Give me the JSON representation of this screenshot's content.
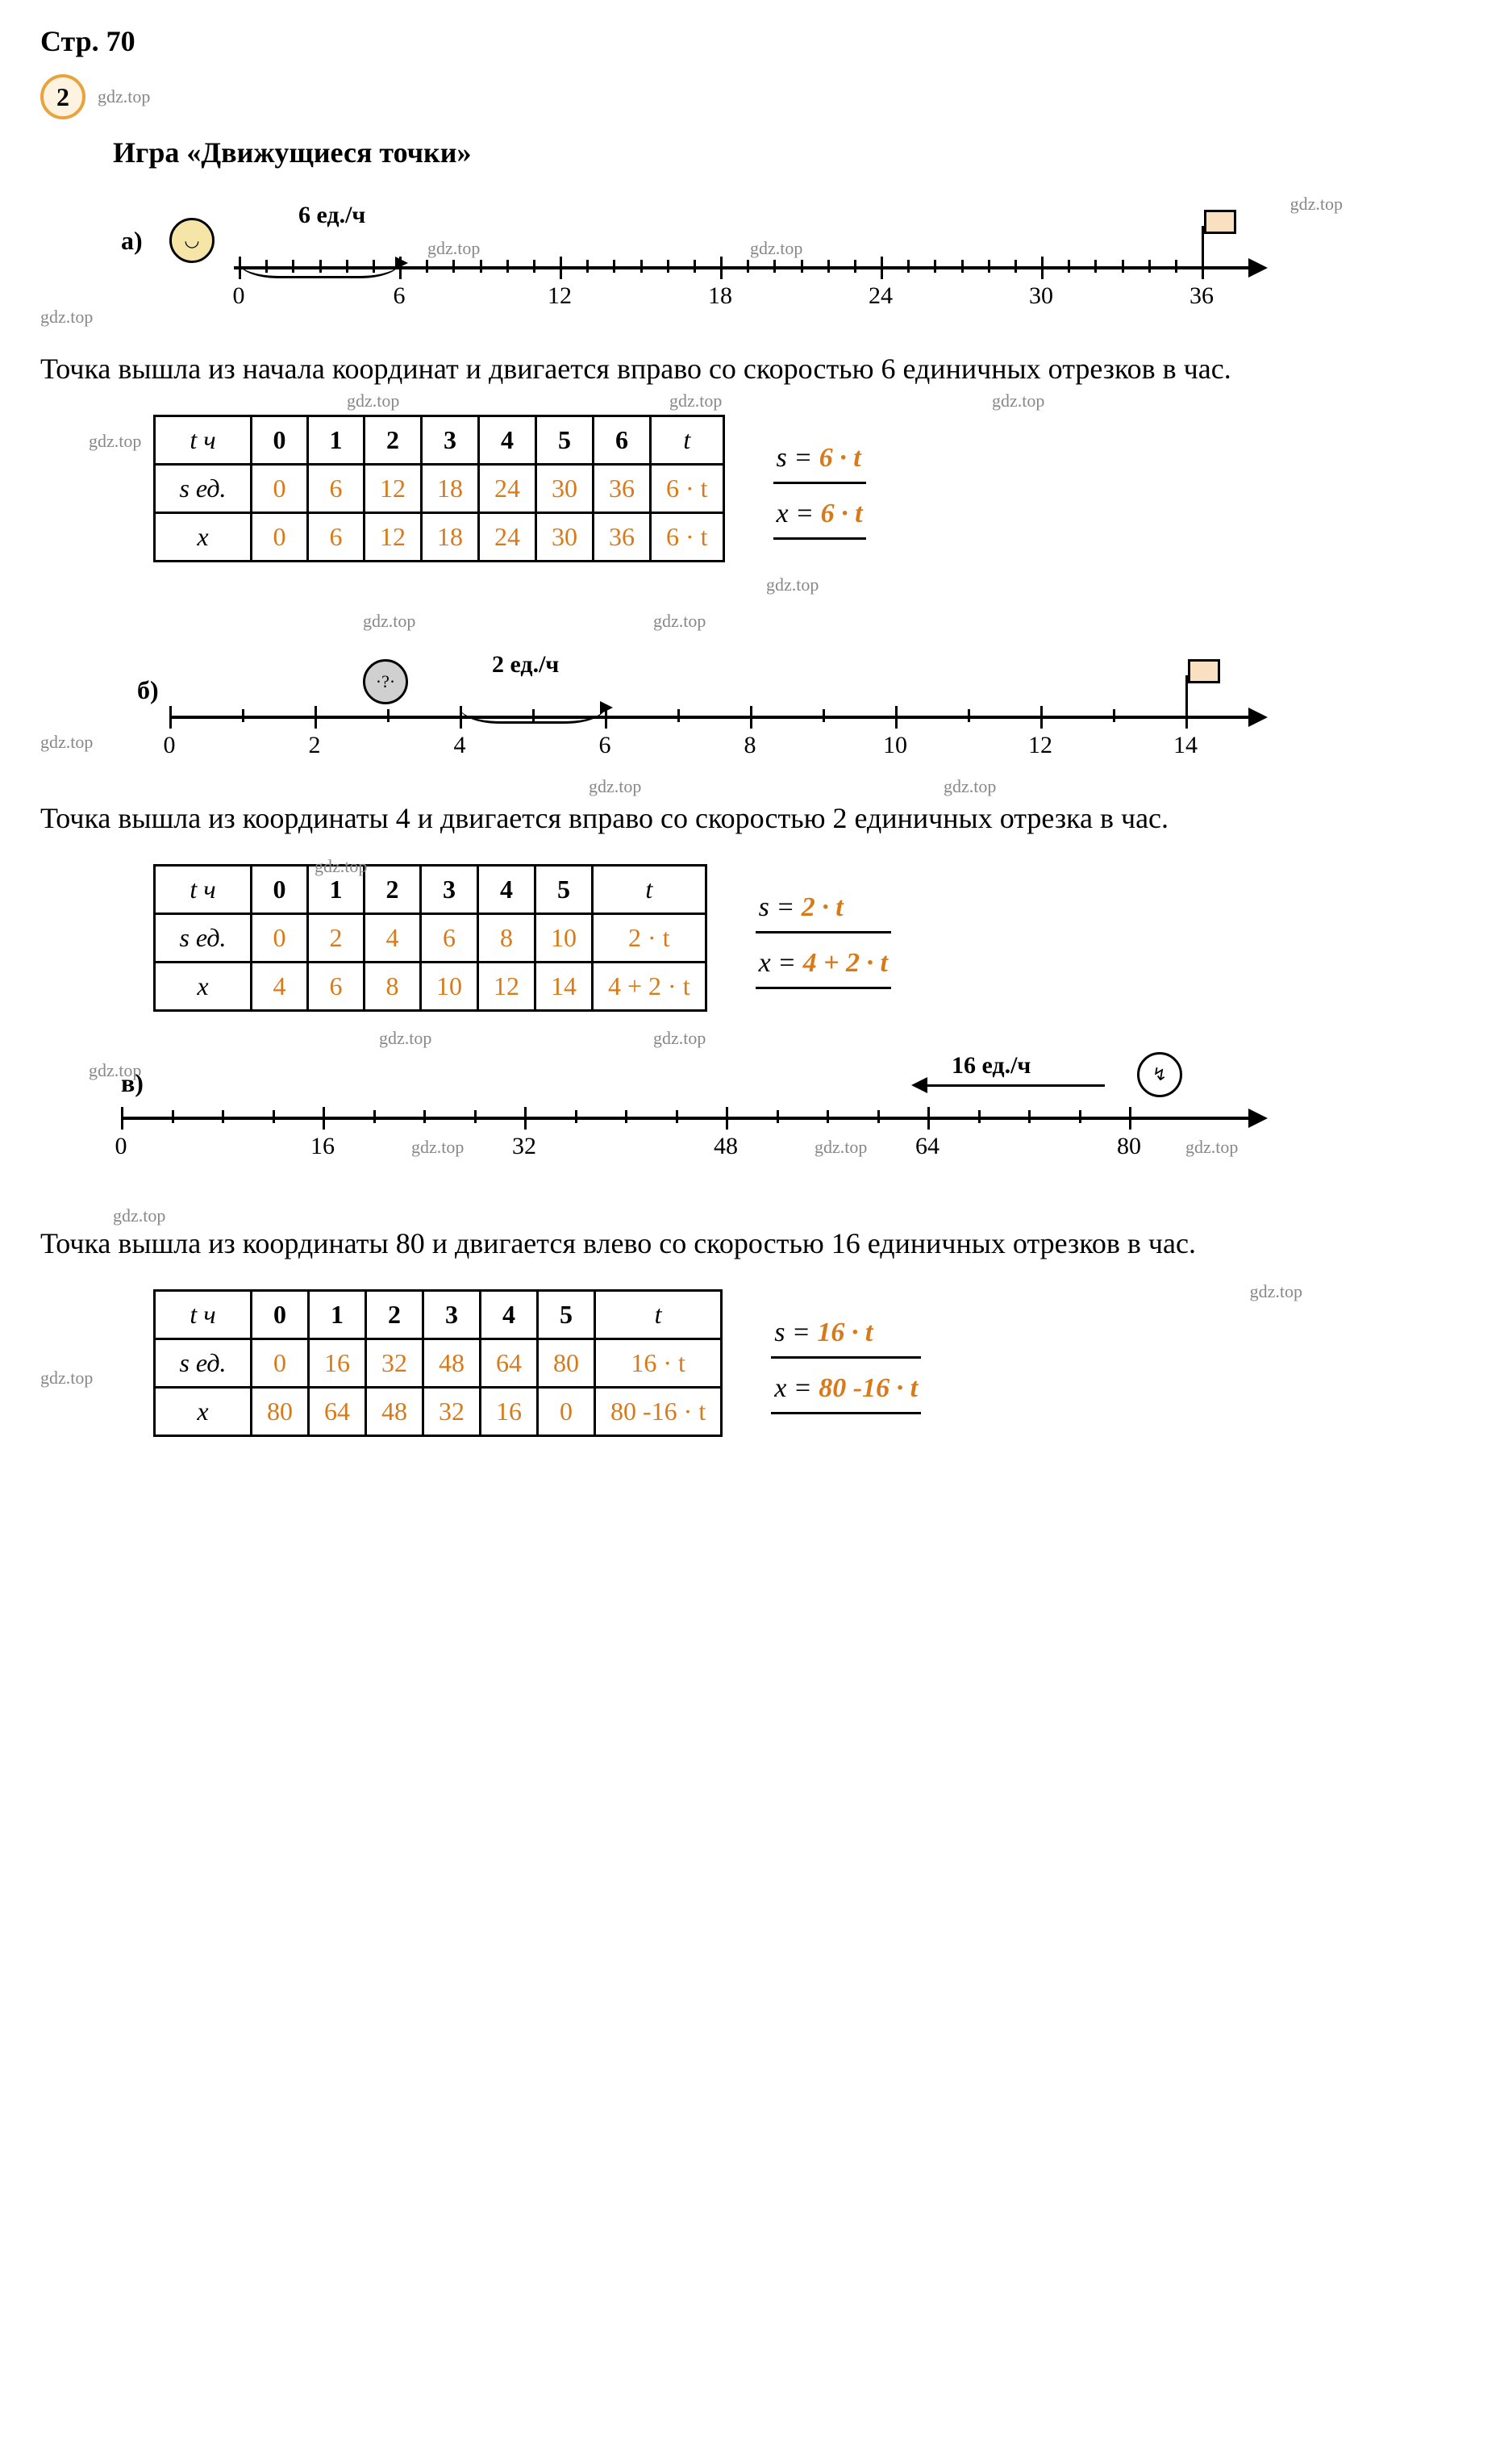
{
  "page_label": "Стр. 70",
  "problem_number": "2",
  "watermark": "gdz.top",
  "title": "Игра «Движущиеся точки»",
  "colors": {
    "accent": "#d97a1a",
    "badge_border": "#e8a33d",
    "badge_fill": "#fef3e0",
    "text": "#000000",
    "bg": "#ffffff",
    "watermark": "#888888"
  },
  "sections": {
    "a": {
      "label": "а)",
      "speed_label": "6 ед./ч",
      "axis": {
        "ticks": [
          "0",
          "6",
          "12",
          "18",
          "24",
          "30",
          "36"
        ],
        "minor_per_major": 6
      },
      "description": "Точка вышла из начала координат и двигается вправо со скоростью 6 единичных отрезков в час.",
      "table": {
        "row_headers": [
          "t ч",
          "s ед.",
          "x"
        ],
        "columns": [
          "0",
          "1",
          "2",
          "3",
          "4",
          "5",
          "6",
          "t"
        ],
        "rows": [
          [
            "0",
            "6",
            "12",
            "18",
            "24",
            "30",
            "36",
            "6 · t"
          ],
          [
            "0",
            "6",
            "12",
            "18",
            "24",
            "30",
            "36",
            "6 · t"
          ]
        ],
        "given_cells": [
          [
            0,
            0
          ],
          [
            0,
            1
          ],
          [
            1,
            0
          ],
          [
            1,
            1
          ]
        ]
      },
      "formulas": {
        "s_lhs": "s =",
        "s_rhs": "6 · t",
        "x_lhs": "x =",
        "x_rhs": "6 · t"
      }
    },
    "b": {
      "label": "б)",
      "speed_label": "2 ед./ч",
      "axis": {
        "ticks": [
          "0",
          "2",
          "4",
          "6",
          "8",
          "10",
          "12",
          "14"
        ],
        "minor_per_major": 2
      },
      "description": "Точка вышла из координаты 4 и двигается вправо со скоростью 2 единичных отрезка в час.",
      "table": {
        "row_headers": [
          "t ч",
          "s ед.",
          "x"
        ],
        "columns": [
          "0",
          "1",
          "2",
          "3",
          "4",
          "5",
          "t"
        ],
        "rows": [
          [
            "0",
            "2",
            "4",
            "6",
            "8",
            "10",
            "2 · t"
          ],
          [
            "4",
            "6",
            "8",
            "10",
            "12",
            "14",
            "4 + 2 · t"
          ]
        ],
        "given_cells": [
          [
            0,
            0
          ],
          [
            0,
            1
          ],
          [
            1,
            0
          ],
          [
            1,
            1
          ]
        ]
      },
      "formulas": {
        "s_lhs": "s =",
        "s_rhs": "2 · t",
        "x_lhs": "x =",
        "x_rhs": "4 + 2 · t"
      }
    },
    "c": {
      "label": "в)",
      "speed_label": "16 ед./ч",
      "axis": {
        "ticks": [
          "0",
          "16",
          "32",
          "48",
          "64",
          "80"
        ],
        "minor_per_major": 4
      },
      "description": "Точка вышла из координаты 80 и двигается влево со скоростью 16 единичных отрезков в час.",
      "table": {
        "row_headers": [
          "t ч",
          "s ед.",
          "x"
        ],
        "columns": [
          "0",
          "1",
          "2",
          "3",
          "4",
          "5",
          "t"
        ],
        "rows": [
          [
            "0",
            "16",
            "32",
            "48",
            "64",
            "80",
            "16 · t"
          ],
          [
            "80",
            "64",
            "48",
            "32",
            "16",
            "0",
            "80 -16 · t"
          ]
        ],
        "given_cells": [
          [
            0,
            0
          ],
          [
            1,
            0
          ]
        ]
      },
      "formulas": {
        "s_lhs": "s =",
        "s_rhs": "16 · t",
        "x_lhs": "x =",
        "x_rhs": "80 -16 · t"
      }
    }
  }
}
